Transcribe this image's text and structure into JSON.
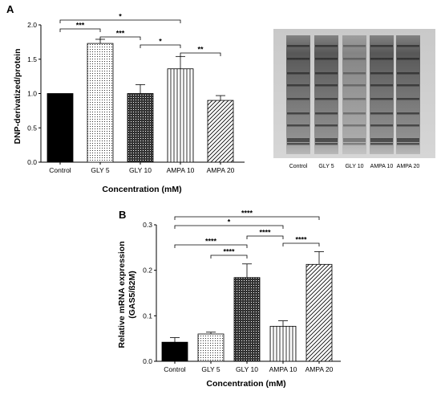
{
  "chart_data": [
    {
      "panel": "A",
      "type": "bar",
      "categories": [
        "Control",
        "GLY 5",
        "GLY 10",
        "AMPA 10",
        "AMPA 20"
      ],
      "values": [
        1.0,
        1.73,
        1.0,
        1.36,
        0.9
      ],
      "errors": [
        0.0,
        0.06,
        0.13,
        0.18,
        0.07
      ],
      "xlabel": "Concentration (mM)",
      "ylabel": "DNP-derivatized/protein",
      "ylim": [
        0.0,
        2.0
      ],
      "yticks": [
        "0.0",
        "0.5",
        "1.0",
        "1.5",
        "2.0"
      ],
      "patterns": [
        "solid",
        "dots",
        "crosshatch",
        "vertical",
        "diagonal"
      ],
      "significance": [
        {
          "from": 0,
          "to": 1,
          "label": "***"
        },
        {
          "from": 0,
          "to": 3,
          "label": "*"
        },
        {
          "from": 1,
          "to": 2,
          "label": "***"
        },
        {
          "from": 2,
          "to": 3,
          "label": "*"
        },
        {
          "from": 3,
          "to": 4,
          "label": "**"
        }
      ],
      "blot_lanes": [
        "Control",
        "GLY 5",
        "GLY 10",
        "AMPA 10",
        "AMPA 20"
      ]
    },
    {
      "panel": "B",
      "type": "bar",
      "categories": [
        "Control",
        "GLY 5",
        "GLY 10",
        "AMPA 10",
        "AMPA 20"
      ],
      "values": [
        0.042,
        0.06,
        0.184,
        0.077,
        0.213
      ],
      "errors": [
        0.01,
        0.004,
        0.03,
        0.012,
        0.028
      ],
      "xlabel": "Concentration (mM)",
      "ylabel": "Relative mRNA expression (GAS5/ß2M)",
      "ylim": [
        0.0,
        0.3
      ],
      "yticks": [
        "0.0",
        "0.1",
        "0.2",
        "0.3"
      ],
      "patterns": [
        "solid",
        "dots",
        "crosshatch",
        "vertical",
        "diagonal"
      ],
      "significance": [
        {
          "from": 0,
          "to": 4,
          "label": "****"
        },
        {
          "from": 0,
          "to": 3,
          "label": "*"
        },
        {
          "from": 0,
          "to": 2,
          "label": "****"
        },
        {
          "from": 1,
          "to": 2,
          "label": "****"
        },
        {
          "from": 2,
          "to": 3,
          "label": "****"
        },
        {
          "from": 3,
          "to": 4,
          "label": "****"
        }
      ]
    }
  ]
}
